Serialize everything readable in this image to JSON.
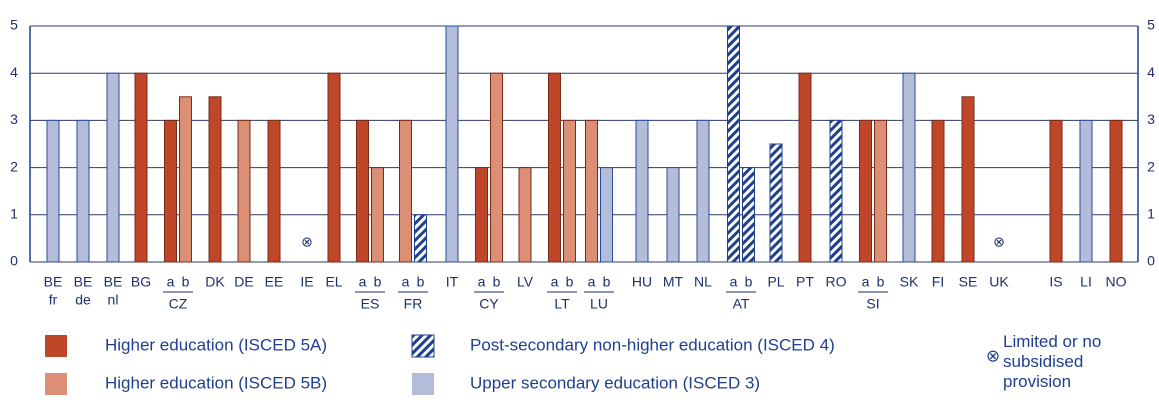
{
  "chart_data": {
    "type": "bar",
    "ylim": [
      0,
      5
    ],
    "yticks": [
      0,
      1,
      2,
      3,
      4,
      5
    ],
    "grid": true,
    "series": [
      {
        "name": "Higher education (ISCED 5A)",
        "color": "#c0462a"
      },
      {
        "name": "Higher education (ISCED 5B)",
        "color": "#dc8f74"
      },
      {
        "name": "Post-secondary non-higher education (ISCED 4)",
        "color": "#1f3f8f",
        "pattern": "hatch"
      },
      {
        "name": "Upper secondary education (ISCED 3)",
        "color": "#b3bcd9"
      }
    ],
    "no_provision": {
      "symbol": "⊗",
      "label": "Limited or no subsidised provision"
    },
    "groups": [
      {
        "name": "BE",
        "sub": "fr",
        "bars": [
          {
            "series": 3,
            "value": 3
          }
        ]
      },
      {
        "name": "BE",
        "sub": "de",
        "bars": [
          {
            "series": 3,
            "value": 3
          }
        ]
      },
      {
        "name": "BE",
        "sub": "nl",
        "bars": [
          {
            "series": 3,
            "value": 4
          }
        ]
      },
      {
        "name": "BG",
        "bars": [
          {
            "series": 0,
            "value": 4
          }
        ]
      },
      {
        "name": "CZ",
        "bars": [
          {
            "label": "a",
            "series": 0,
            "value": 3
          },
          {
            "label": "b",
            "series": 1,
            "value": 3.5
          }
        ]
      },
      {
        "name": "DK",
        "bars": [
          {
            "series": 0,
            "value": 3.5
          }
        ]
      },
      {
        "name": "DE",
        "bars": [
          {
            "series": 1,
            "value": 3
          }
        ]
      },
      {
        "name": "EE",
        "bars": [
          {
            "series": 0,
            "value": 3
          }
        ]
      },
      {
        "name": "IE",
        "no_provision": true,
        "bars": []
      },
      {
        "name": "EL",
        "bars": [
          {
            "series": 0,
            "value": 4
          }
        ]
      },
      {
        "name": "ES",
        "bars": [
          {
            "label": "a",
            "series": 0,
            "value": 3
          },
          {
            "label": "b",
            "series": 1,
            "value": 2
          }
        ]
      },
      {
        "name": "FR",
        "bars": [
          {
            "label": "a",
            "series": 1,
            "value": 3
          },
          {
            "label": "b",
            "series": 2,
            "value": 1
          }
        ]
      },
      {
        "name": "IT",
        "bars": [
          {
            "series": 3,
            "value": 5
          }
        ]
      },
      {
        "name": "CY",
        "bars": [
          {
            "label": "a",
            "series": 0,
            "value": 2
          },
          {
            "label": "b",
            "series": 1,
            "value": 4
          }
        ]
      },
      {
        "name": "LV",
        "bars": [
          {
            "series": 1,
            "value": 2
          }
        ]
      },
      {
        "name": "LT",
        "bars": [
          {
            "label": "a",
            "series": 0,
            "value": 4
          },
          {
            "label": "b",
            "series": 1,
            "value": 3
          }
        ]
      },
      {
        "name": "LU",
        "bars": [
          {
            "label": "a",
            "series": 1,
            "value": 3
          },
          {
            "label": "b",
            "series": 3,
            "value": 2
          }
        ]
      },
      {
        "name": "HU",
        "bars": [
          {
            "series": 3,
            "value": 3
          }
        ]
      },
      {
        "name": "MT",
        "bars": [
          {
            "series": 3,
            "value": 2
          }
        ]
      },
      {
        "name": "NL",
        "bars": [
          {
            "series": 3,
            "value": 3
          }
        ]
      },
      {
        "name": "AT",
        "bars": [
          {
            "label": "a",
            "series": 2,
            "value": 5
          },
          {
            "label": "b",
            "series": 2,
            "value": 2
          }
        ]
      },
      {
        "name": "PL",
        "bars": [
          {
            "series": 2,
            "value": 2.5
          }
        ]
      },
      {
        "name": "PT",
        "bars": [
          {
            "series": 0,
            "value": 4
          }
        ]
      },
      {
        "name": "RO",
        "bars": [
          {
            "series": 2,
            "value": 3
          }
        ]
      },
      {
        "name": "SI",
        "bars": [
          {
            "label": "a",
            "series": 0,
            "value": 3
          },
          {
            "label": "b",
            "series": 1,
            "value": 3
          }
        ]
      },
      {
        "name": "SK",
        "bars": [
          {
            "series": 3,
            "value": 4
          }
        ]
      },
      {
        "name": "FI",
        "bars": [
          {
            "series": 0,
            "value": 3
          }
        ]
      },
      {
        "name": "SE",
        "bars": [
          {
            "series": 0,
            "value": 3.5
          }
        ]
      },
      {
        "name": "UK",
        "no_provision": true,
        "bars": []
      },
      {
        "name": "IS",
        "bars": [
          {
            "series": 0,
            "value": 3
          }
        ]
      },
      {
        "name": "LI",
        "bars": [
          {
            "series": 3,
            "value": 3
          }
        ]
      },
      {
        "name": "NO",
        "bars": [
          {
            "series": 0,
            "value": 3
          }
        ]
      }
    ]
  }
}
